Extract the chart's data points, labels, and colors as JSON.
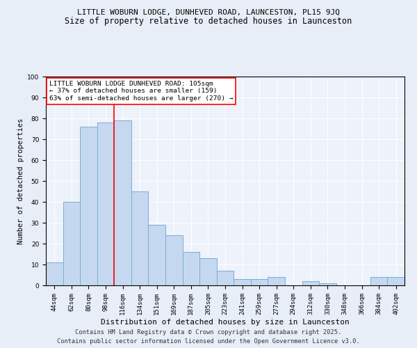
{
  "title_line1": "LITTLE WOBURN LODGE, DUNHEVED ROAD, LAUNCESTON, PL15 9JQ",
  "title_line2": "Size of property relative to detached houses in Launceston",
  "xlabel": "Distribution of detached houses by size in Launceston",
  "ylabel": "Number of detached properties",
  "categories": [
    "44sqm",
    "62sqm",
    "80sqm",
    "98sqm",
    "116sqm",
    "134sqm",
    "151sqm",
    "169sqm",
    "187sqm",
    "205sqm",
    "223sqm",
    "241sqm",
    "259sqm",
    "277sqm",
    "294sqm",
    "312sqm",
    "330sqm",
    "348sqm",
    "366sqm",
    "384sqm",
    "402sqm"
  ],
  "values": [
    11,
    40,
    76,
    78,
    79,
    45,
    29,
    24,
    16,
    13,
    7,
    3,
    3,
    4,
    0,
    2,
    1,
    0,
    0,
    4,
    4
  ],
  "bar_color": "#c5d8f0",
  "bar_edge_color": "#7aadd4",
  "red_line_index": 3.5,
  "ylim": [
    0,
    100
  ],
  "yticks": [
    0,
    10,
    20,
    30,
    40,
    50,
    60,
    70,
    80,
    90,
    100
  ],
  "annotation_box_text": "LITTLE WOBURN LODGE DUNHEVED ROAD: 105sqm\n← 37% of detached houses are smaller (159)\n63% of semi-detached houses are larger (270) →",
  "footer_line1": "Contains HM Land Registry data © Crown copyright and database right 2025.",
  "footer_line2": "Contains public sector information licensed under the Open Government Licence v3.0.",
  "bg_color": "#e8eef7",
  "plot_bg_color": "#edf2fb",
  "title1_fontsize": 8,
  "title2_fontsize": 8.5,
  "xlabel_fontsize": 8,
  "ylabel_fontsize": 7.5,
  "tick_fontsize": 6.5,
  "annotation_fontsize": 6.8,
  "footer_fontsize": 6.2
}
